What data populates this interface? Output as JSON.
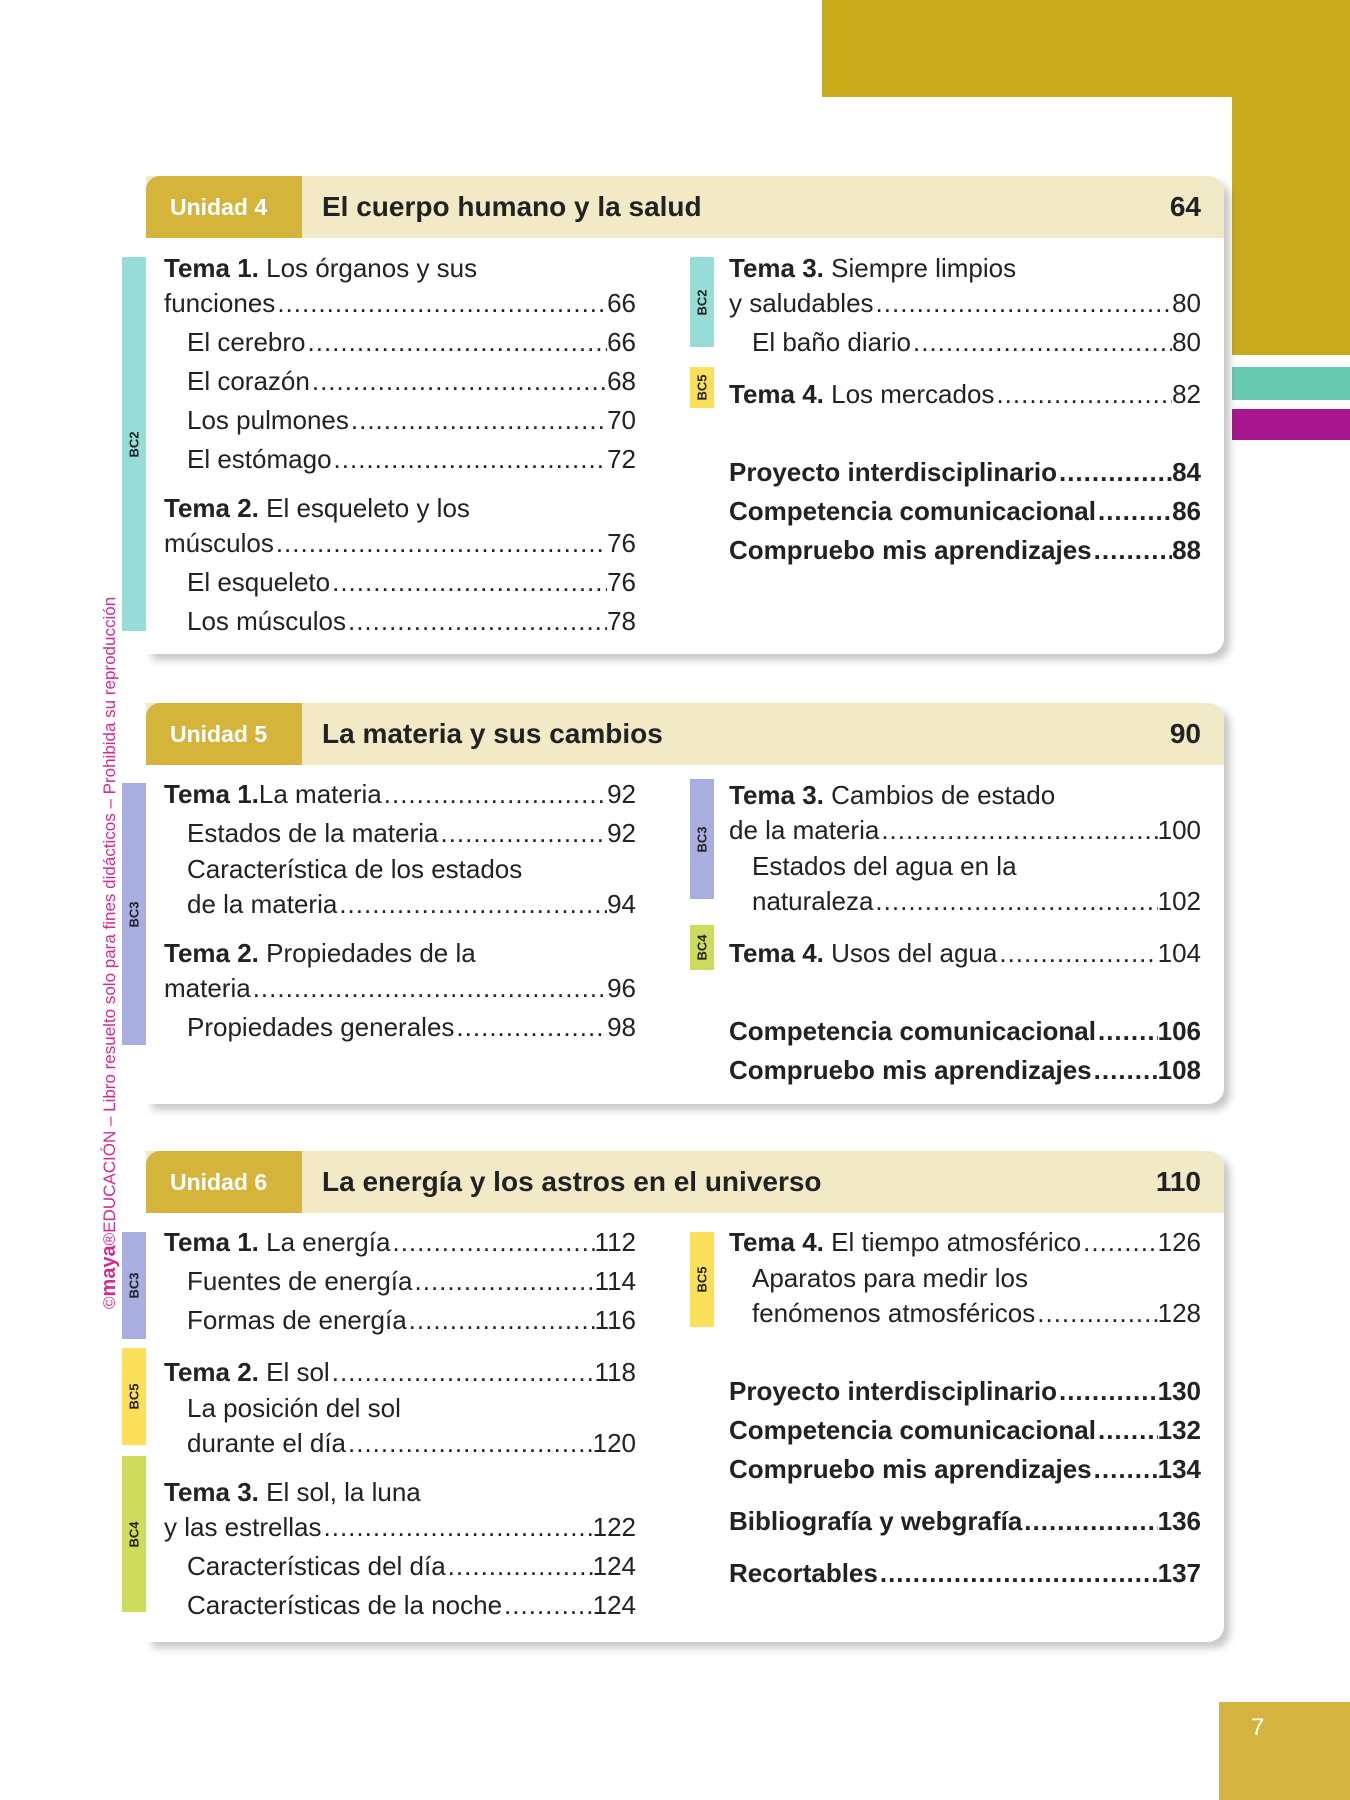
{
  "side_text": {
    "copyright": "©",
    "brand": "maya",
    "rest": "®EDUCACIÓN – Libro resuelto solo para fines didácticos – Prohibida su reproducción"
  },
  "page_number": "7",
  "colors": {
    "gold": "#c9aa1b",
    "unit_label": "#d5b43c",
    "header_band": "#f2eac6",
    "BC2": "#97dcd6",
    "BC3": "#a9aee0",
    "BC4": "#cddc5c",
    "BC5": "#fde05a"
  },
  "units": [
    {
      "label": "Unidad 4",
      "title": "El cuerpo humano y la salud",
      "page": "64",
      "bc_left": [
        "BC2"
      ],
      "bc_right": [
        "BC2",
        "BC5"
      ],
      "left": [
        {
          "b": "Tema 1.",
          "l1": " Los órganos y sus",
          "t": "funciones",
          "p": "66"
        },
        {
          "t": "El cerebro",
          "p": "66"
        },
        {
          "t": "El corazón",
          "p": "68"
        },
        {
          "t": "Los pulmones",
          "p": "70"
        },
        {
          "t": "El estómago",
          "p": "72"
        },
        {
          "b": "Tema 2.",
          "l1": " El esqueleto y los",
          "t": "músculos",
          "p": "76"
        },
        {
          "t": "El esqueleto",
          "p": "76"
        },
        {
          "t": "Los músculos",
          "p": "78"
        }
      ],
      "right": [
        {
          "b": "Tema 3.",
          "l1": " Siempre limpios",
          "t": "y saludables",
          "p": "80"
        },
        {
          "t": "El baño diario",
          "p": "80"
        },
        {
          "b": "Tema 4.",
          "t": " Los mercados",
          "p": "82"
        },
        {
          "t": "Proyecto interdisciplinario",
          "p": "84"
        },
        {
          "t": "Competencia comunicacional",
          "p": "86"
        },
        {
          "t": "Compruebo mis aprendizajes",
          "p": "88"
        }
      ]
    },
    {
      "label": "Unidad 5",
      "title": "La materia y sus cambios",
      "page": "90",
      "bc_left": [
        "BC3"
      ],
      "bc_right": [
        "BC3",
        "BC4"
      ],
      "left": [
        {
          "b": "Tema 1.",
          "t": "La materia",
          "p": "92"
        },
        {
          "t": "Estados de la materia",
          "p": "92"
        },
        {
          "l1": "Característica de los estados",
          "t": "de la materia",
          "p": "94"
        },
        {
          "b": "Tema 2.",
          "l1": " Propiedades de la",
          "t": "materia",
          "p": "96"
        },
        {
          "t": "Propiedades generales",
          "p": "98"
        }
      ],
      "right": [
        {
          "b": "Tema 3.",
          "l1": " Cambios de estado",
          "t": "de la materia",
          "p": "100"
        },
        {
          "l1": "Estados del agua en la",
          "t": "naturaleza",
          "p": "102"
        },
        {
          "b": "Tema 4.",
          "t": " Usos del agua",
          "p": "104"
        },
        {
          "t": "Competencia comunicacional",
          "p": "106"
        },
        {
          "t": "Compruebo mis aprendizajes",
          "p": "108"
        }
      ]
    },
    {
      "label": "Unidad 6",
      "title": "La energía y los astros en el universo",
      "page": "110",
      "bc_left": [
        "BC3",
        "BC5",
        "BC4"
      ],
      "bc_right": [
        "BC5"
      ],
      "left": [
        {
          "b": "Tema 1.",
          "t": " La energía",
          "p": "112"
        },
        {
          "t": "Fuentes de energía",
          "p": "114"
        },
        {
          "t": "Formas de energía",
          "p": "116"
        },
        {
          "b": "Tema 2.",
          "t": " El sol",
          "p": "118"
        },
        {
          "l1": "La posición del sol",
          "t": "durante el día",
          "p": "120"
        },
        {
          "b": "Tema 3.",
          "l1": " El sol, la luna",
          "t": "y las estrellas",
          "p": "122"
        },
        {
          "t": "Características del día",
          "p": "124"
        },
        {
          "t": "Características de la noche",
          "p": "124"
        }
      ],
      "right": [
        {
          "b": "Tema 4.",
          "t": " El tiempo atmosférico",
          "p": "126"
        },
        {
          "l1": "Aparatos para medir los",
          "t": "fenómenos atmosféricos",
          "p": "128"
        },
        {
          "t": "Proyecto interdisciplinario",
          "p": "130"
        },
        {
          "t": "Competencia comunicacional",
          "p": "132"
        },
        {
          "t": "Compruebo mis aprendizajes",
          "p": "134"
        },
        {
          "t": "Bibliografía y webgrafía",
          "p": "136"
        },
        {
          "t": "Recortables",
          "p": "137"
        }
      ]
    }
  ]
}
